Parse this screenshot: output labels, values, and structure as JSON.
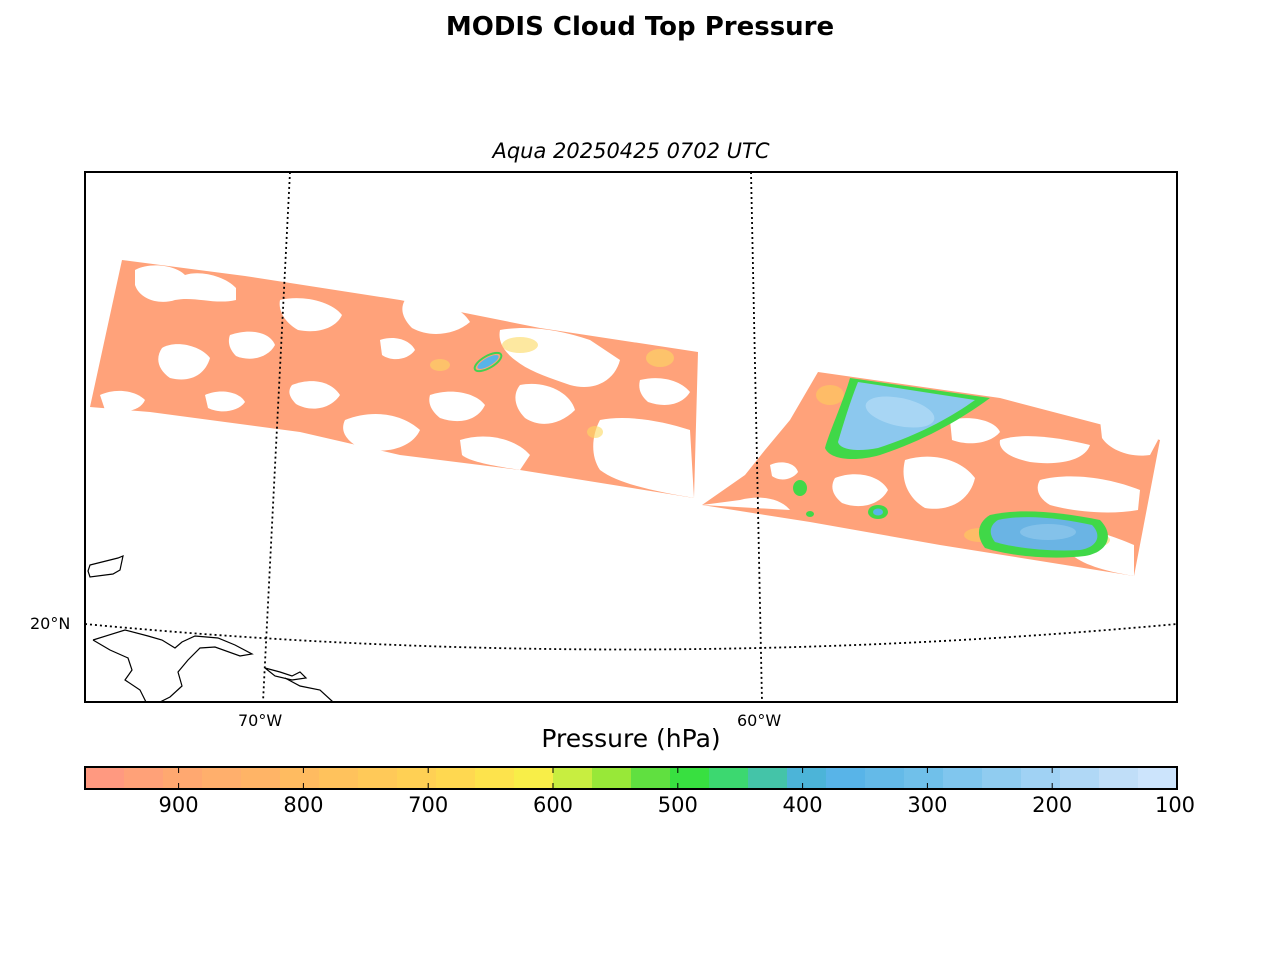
{
  "title": "MODIS Cloud Top Pressure",
  "subtitle": "Aqua 20250425 0702 UTC",
  "map": {
    "latitude_labels": [
      "20°N"
    ],
    "longitude_labels": [
      "70°W",
      "60°W"
    ],
    "graticule": "dotted",
    "coastlines": true
  },
  "colorbar": {
    "label": "Pressure (hPa)",
    "ticks": [
      "900",
      "800",
      "700",
      "600",
      "500",
      "400",
      "300",
      "200",
      "100"
    ],
    "range": [
      975,
      100
    ],
    "colors": [
      "#ff9980",
      "#ffa178",
      "#ffa870",
      "#ffaf6c",
      "#ffb466",
      "#ffbb60",
      "#ffc25c",
      "#ffc958",
      "#ffd054",
      "#ffd850",
      "#fde34c",
      "#f8ee48",
      "#c8ee40",
      "#98e838",
      "#60e040",
      "#38e040",
      "#3cd870",
      "#44c4a8",
      "#4cb4d8",
      "#58b4e8",
      "#64bae8",
      "#70c0ea",
      "#80c6ee",
      "#90ccf0",
      "#a0d2f4",
      "#b0d8f6",
      "#c0def8",
      "#cce4fc"
    ]
  },
  "swaths": [
    {
      "name": "west swath",
      "dominant_pressure_hPa": 880
    },
    {
      "name": "east swath",
      "dominant_pressure_hPa": 880,
      "high_cloud_pressure_hPa": 280
    }
  ]
}
